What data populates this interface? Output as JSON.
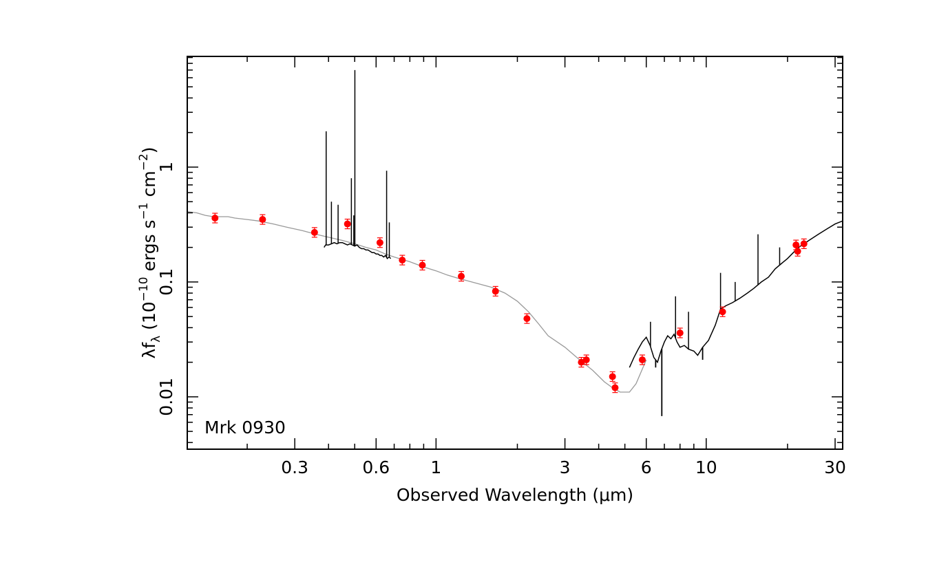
{
  "chart_data": {
    "type": "scatter",
    "annotation": "Mrk 0930",
    "xlabel": "Observed Wavelength (μm)",
    "ylabel": {
      "lambda": "λ",
      "f": "f",
      "f_sub": "λ",
      "units_prefix": " (10",
      "exp1": "−10",
      "units_mid": " ergs s",
      "exp2": "−1",
      "units_mid2": " cm",
      "exp3": "−2",
      "units_end": ")"
    },
    "x_scale": "log",
    "y_scale": "log",
    "xlim": [
      0.12,
      32
    ],
    "ylim": [
      0.0035,
      9.2
    ],
    "x_ticks": [
      {
        "value": 0.3,
        "label": "0.3"
      },
      {
        "value": 0.6,
        "label": "0.6"
      },
      {
        "value": 1,
        "label": "1"
      },
      {
        "value": 3,
        "label": "3"
      },
      {
        "value": 6,
        "label": "6"
      },
      {
        "value": 10,
        "label": "10"
      },
      {
        "value": 30,
        "label": "30"
      }
    ],
    "y_ticks": [
      {
        "value": 0.01,
        "label": "0.01"
      },
      {
        "value": 0.1,
        "label": "0.1"
      },
      {
        "value": 1,
        "label": "1"
      }
    ],
    "grid": false,
    "colors": {
      "points": "#ff0000",
      "model": "#999999",
      "spectra": "#000000"
    },
    "series": [
      {
        "kind": "points",
        "x": [
          0.152,
          0.228,
          0.355,
          0.47,
          0.62,
          0.75,
          0.89,
          1.24,
          1.66,
          2.17,
          3.45,
          3.6,
          4.5,
          4.6,
          5.8,
          8.0,
          11.5,
          21.5,
          21.8,
          23.0
        ],
        "y": [
          0.36,
          0.35,
          0.27,
          0.32,
          0.22,
          0.155,
          0.14,
          0.112,
          0.083,
          0.048,
          0.02,
          0.021,
          0.015,
          0.012,
          0.021,
          0.036,
          0.055,
          0.21,
          0.185,
          0.215
        ]
      },
      {
        "kind": "model-line",
        "x": [
          0.12,
          0.13,
          0.14,
          0.15,
          0.16,
          0.17,
          0.18,
          0.2,
          0.22,
          0.25,
          0.28,
          0.32,
          0.36,
          0.4,
          0.45,
          0.5,
          0.55,
          0.6,
          0.65,
          0.7,
          0.8,
          0.9,
          1.0,
          1.1,
          1.2,
          1.4,
          1.6,
          1.8,
          2.0,
          2.2,
          2.4,
          2.6,
          3.0,
          3.4,
          3.8,
          4.2,
          4.5,
          4.8,
          5.2,
          5.5,
          6.0
        ],
        "y": [
          0.41,
          0.4,
          0.38,
          0.37,
          0.37,
          0.37,
          0.36,
          0.35,
          0.34,
          0.32,
          0.3,
          0.28,
          0.26,
          0.245,
          0.23,
          0.215,
          0.2,
          0.19,
          0.175,
          0.165,
          0.15,
          0.135,
          0.125,
          0.115,
          0.108,
          0.098,
          0.09,
          0.08,
          0.068,
          0.055,
          0.043,
          0.034,
          0.027,
          0.021,
          0.017,
          0.0135,
          0.012,
          0.011,
          0.011,
          0.013,
          0.021
        ]
      },
      {
        "kind": "spectrum-line",
        "x": [
          0.385,
          0.39,
          0.4,
          0.41,
          0.42,
          0.43,
          0.44,
          0.45,
          0.46,
          0.47,
          0.48,
          0.49,
          0.5,
          0.51,
          0.52,
          0.53,
          0.54,
          0.55,
          0.56,
          0.57,
          0.58,
          0.59,
          0.6,
          0.61,
          0.62,
          0.63,
          0.64,
          0.65,
          0.66,
          0.67,
          0.68
        ],
        "y": [
          0.2,
          0.21,
          0.21,
          0.215,
          0.22,
          0.215,
          0.22,
          0.22,
          0.215,
          0.21,
          0.215,
          0.21,
          0.205,
          0.21,
          0.2,
          0.195,
          0.195,
          0.19,
          0.19,
          0.185,
          0.18,
          0.18,
          0.175,
          0.175,
          0.17,
          0.17,
          0.165,
          0.17,
          0.16,
          0.165,
          0.16
        ]
      },
      {
        "kind": "spectrum-line",
        "x": [
          5.2,
          5.4,
          5.6,
          5.8,
          6.0,
          6.2,
          6.4,
          6.6,
          6.8,
          7.0,
          7.2,
          7.4,
          7.6,
          7.8,
          8.0,
          8.3,
          8.6,
          9.0,
          9.3,
          9.7,
          10.2,
          10.8,
          11.3,
          11.8,
          12.5,
          13.3,
          14.2,
          15.0,
          16.0,
          17.0,
          18.0,
          19.0,
          20.0,
          21.0,
          22.0,
          24.0,
          26.0,
          28.0,
          30.0,
          32.0
        ],
        "y": [
          0.018,
          0.022,
          0.026,
          0.03,
          0.033,
          0.028,
          0.022,
          0.02,
          0.025,
          0.03,
          0.034,
          0.032,
          0.035,
          0.03,
          0.027,
          0.028,
          0.026,
          0.025,
          0.023,
          0.027,
          0.031,
          0.042,
          0.058,
          0.062,
          0.066,
          0.072,
          0.08,
          0.088,
          0.1,
          0.11,
          0.13,
          0.145,
          0.16,
          0.18,
          0.2,
          0.23,
          0.26,
          0.29,
          0.32,
          0.34
        ]
      }
    ],
    "emission_lines": [
      {
        "x": 0.392,
        "peak": 2.05
      },
      {
        "x": 0.41,
        "peak": 0.5
      },
      {
        "x": 0.434,
        "peak": 0.47
      },
      {
        "x": 0.486,
        "peak": 0.8
      },
      {
        "x": 0.496,
        "peak": 0.38
      },
      {
        "x": 0.5007,
        "peak": 7.0
      },
      {
        "x": 0.6563,
        "peak": 0.93
      },
      {
        "x": 0.6716,
        "peak": 0.33
      },
      {
        "x": 6.22,
        "peak": 0.045
      },
      {
        "x": 7.7,
        "peak": 0.075
      },
      {
        "x": 8.6,
        "peak": 0.055
      },
      {
        "x": 11.3,
        "peak": 0.12
      },
      {
        "x": 12.8,
        "peak": 0.1
      },
      {
        "x": 15.55,
        "peak": 0.26
      },
      {
        "x": 18.7,
        "peak": 0.2
      }
    ],
    "absorption_features": [
      {
        "x": 6.5,
        "depth": 0.018
      },
      {
        "x": 6.85,
        "depth": 0.0068
      },
      {
        "x": 9.7,
        "depth": 0.021
      }
    ]
  }
}
